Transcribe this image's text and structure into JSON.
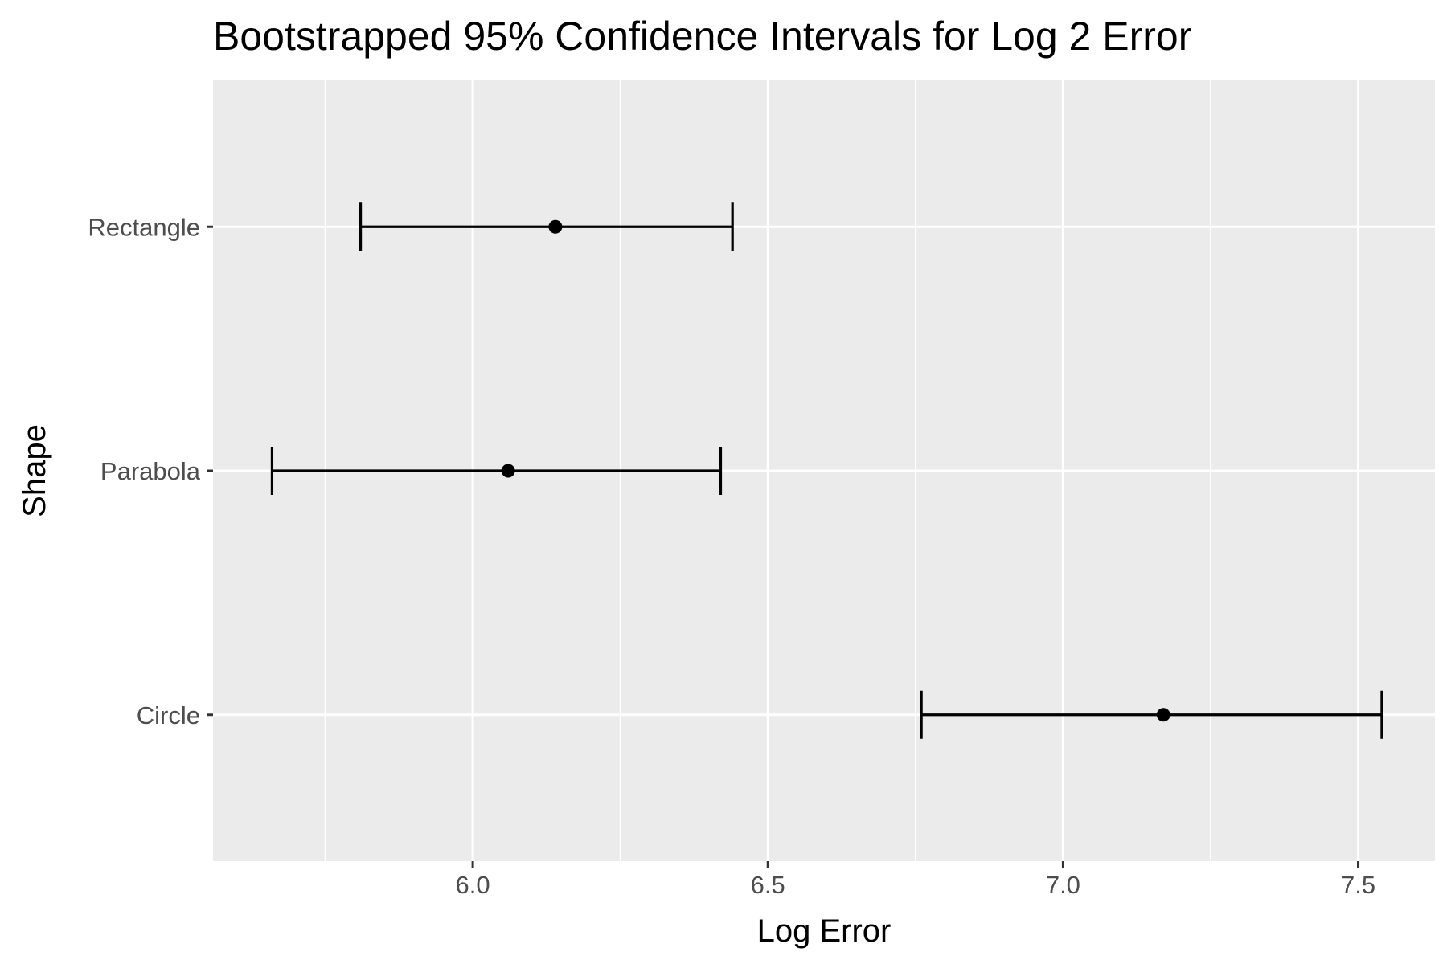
{
  "chart_data": {
    "type": "errorbar",
    "title": "Bootstrapped 95% Confidence Intervals for Log 2 Error",
    "xlabel": "Log Error",
    "ylabel": "Shape",
    "xlim": [
      5.56,
      7.63
    ],
    "x_ticks": [
      "6.0",
      "6.5",
      "7.0",
      "7.5"
    ],
    "x_tick_values": [
      6.0,
      6.5,
      7.0,
      7.5
    ],
    "x_minor_tick_values": [
      5.75,
      6.25,
      6.75,
      7.25
    ],
    "categories": [
      "Rectangle",
      "Parabola",
      "Circle"
    ],
    "points": [
      {
        "category": "Rectangle",
        "estimate": 6.14,
        "lower": 5.81,
        "upper": 6.44
      },
      {
        "category": "Parabola",
        "estimate": 6.06,
        "lower": 5.66,
        "upper": 6.42
      },
      {
        "category": "Circle",
        "estimate": 7.17,
        "lower": 6.76,
        "upper": 7.54
      }
    ],
    "grid": true,
    "legend": "none",
    "colors": {
      "panel_background": "#ebebeb",
      "grid_major": "#ffffff",
      "grid_minor": "#ffffff",
      "marks": "#000000",
      "tick_text": "#4d4d4d",
      "title_text": "#000000"
    }
  }
}
